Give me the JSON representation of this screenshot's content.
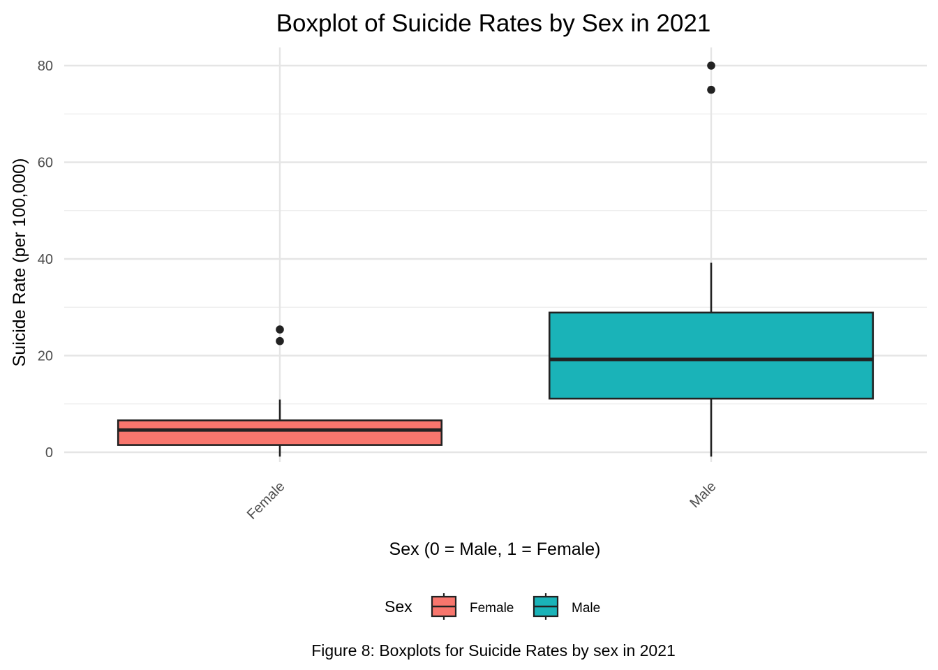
{
  "chart_data": {
    "type": "boxplot",
    "title": "Boxplot of Suicide Rates by Sex in 2021",
    "xlabel": "Sex (0 = Male, 1 = Female)",
    "ylabel": "Suicide Rate (per 100,000)",
    "caption": "Figure 8: Boxplots for Suicide Rates by sex in 2021",
    "ylim": [
      -1.5,
      84
    ],
    "yticks": [
      0,
      20,
      40,
      60,
      80
    ],
    "grid": true,
    "legend": {
      "title": "Sex",
      "position": "bottom",
      "entries": [
        "Female",
        "Male"
      ]
    },
    "categories": [
      "Female",
      "Male"
    ],
    "series": [
      {
        "name": "Female",
        "color": "#F8766D",
        "whisker_low": -0.9,
        "q1": 1.5,
        "median": 4.6,
        "q3": 6.6,
        "whisker_high": 10.9,
        "outliers": [
          23.0,
          25.4
        ]
      },
      {
        "name": "Male",
        "color": "#1AB3B8",
        "whisker_low": -0.9,
        "q1": 11.1,
        "median": 19.2,
        "q3": 28.9,
        "whisker_high": 39.2,
        "outliers": [
          75.0,
          80.0
        ]
      }
    ]
  }
}
